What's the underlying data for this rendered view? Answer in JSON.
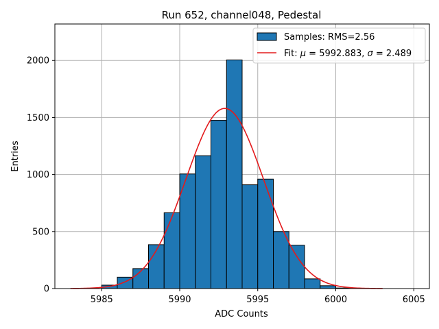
{
  "chart_data": {
    "type": "bar",
    "title": "Run 652, channel048, Pedestal",
    "xlabel": "ADC Counts",
    "ylabel": "Entries",
    "xlim": [
      5982.0,
      6006.0
    ],
    "ylim": [
      0,
      2320
    ],
    "x_ticks": [
      5985,
      5990,
      5995,
      6000,
      6005
    ],
    "y_ticks": [
      0,
      500,
      1000,
      1500,
      2000
    ],
    "grid": true,
    "legend_position": "top-right",
    "bin_width": 1,
    "bins": [
      {
        "x": 5985,
        "count": 30
      },
      {
        "x": 5986,
        "count": 100
      },
      {
        "x": 5987,
        "count": 175
      },
      {
        "x": 5988,
        "count": 385
      },
      {
        "x": 5989,
        "count": 665
      },
      {
        "x": 5990,
        "count": 1005
      },
      {
        "x": 5991,
        "count": 1165
      },
      {
        "x": 5992,
        "count": 1475
      },
      {
        "x": 5993,
        "count": 2005
      },
      {
        "x": 5994,
        "count": 910
      },
      {
        "x": 5995,
        "count": 960
      },
      {
        "x": 5996,
        "count": 500
      },
      {
        "x": 5997,
        "count": 380
      },
      {
        "x": 5998,
        "count": 85
      },
      {
        "x": 5999,
        "count": 25
      },
      {
        "x": 6000,
        "count": 5
      }
    ],
    "fit": {
      "mu": 5992.883,
      "sigma": 2.489,
      "amplitude": 1580,
      "x_range": [
        5983,
        6003
      ]
    },
    "legend": {
      "samples_label": "Samples: RMS=2.56",
      "fit_label_prefix": "Fit: ",
      "fit_mu_symbol": "μ",
      "fit_mu_text": " = 5992.883, ",
      "fit_sigma_symbol": "σ",
      "fit_sigma_text": " = 2.489"
    },
    "colors": {
      "bar": "#1f77b4",
      "bar_edge": "#000000",
      "fit": "#e31a1c",
      "grid": "#b0b0b0"
    }
  }
}
